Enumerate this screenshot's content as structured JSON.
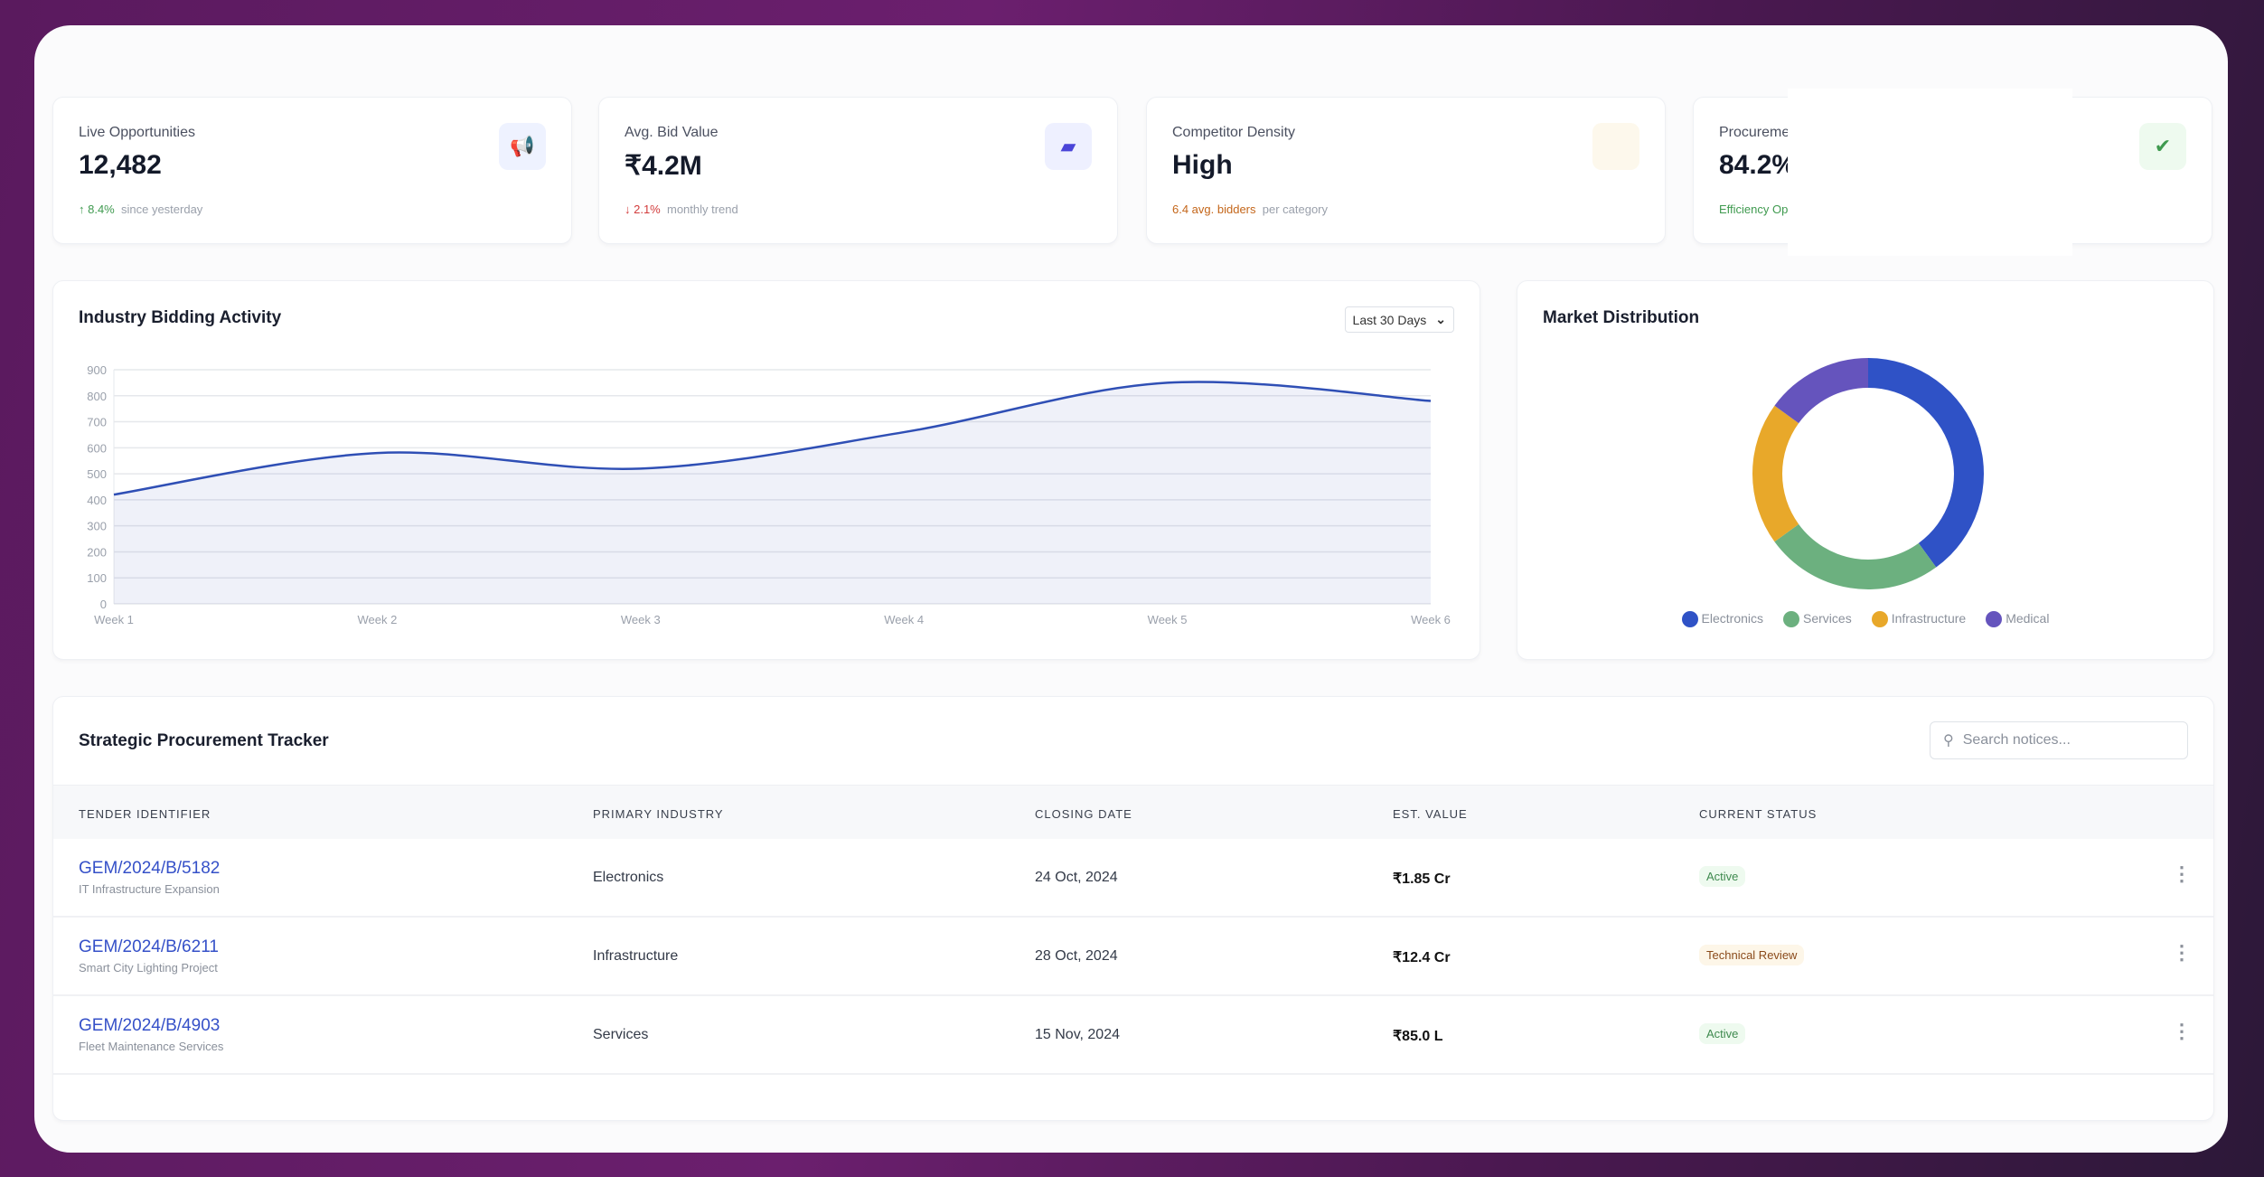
{
  "stats": [
    {
      "label": "Live Opportunities",
      "value": "12,482",
      "delta": "↑ 8.4%",
      "note": "since yesterday",
      "icon": "megaphone-icon",
      "delta_color": "#3f9a4f",
      "icon_bg": "#eef2ff",
      "icon_color": "#3550c8",
      "icon_glyph": "📢"
    },
    {
      "label": "Avg. Bid Value",
      "value": "₹4.2M",
      "delta": "↓ 2.1%",
      "note": "monthly trend",
      "icon": "wallet-icon",
      "delta_color": "#d23b3b",
      "icon_bg": "#eef0ff",
      "icon_color": "#4a45d8",
      "icon_glyph": "▰"
    },
    {
      "label": "Competitor Density",
      "value": "High",
      "delta": "6.4 avg. bidders",
      "note": "per category",
      "icon": "blank-icon",
      "delta_color": "#c4661a",
      "icon_bg": "#fdf8ec",
      "icon_color": "#c4661a",
      "icon_glyph": ""
    },
    {
      "label": "Procurement Efficiency",
      "value": "84.2%",
      "delta": "Efficiency Optimized",
      "note": "",
      "icon": "double-check-icon",
      "delta_color": "#3f9a4f",
      "icon_bg": "#eefaef",
      "icon_color": "#3f9a4f",
      "icon_glyph": "✔"
    }
  ],
  "activity": {
    "title": "Industry Bidding Activity",
    "range": "Last 30 Days"
  },
  "distribution": {
    "title": "Market Distribution"
  },
  "tracker": {
    "title": "Strategic Procurement Tracker",
    "search_placeholder": "Search notices...",
    "columns": [
      "TENDER IDENTIFIER",
      "PRIMARY INDUSTRY",
      "CLOSING DATE",
      "EST. VALUE",
      "CURRENT STATUS"
    ],
    "rows": [
      {
        "id": "GEM/2024/B/5182",
        "desc": "IT Infrastructure Expansion",
        "industry": "Electronics",
        "date": "24 Oct, 2024",
        "value": "₹1.85 Cr",
        "status": "Active"
      },
      {
        "id": "GEM/2024/B/6211",
        "desc": "Smart City Lighting Project",
        "industry": "Infrastructure",
        "date": "28 Oct, 2024",
        "value": "₹12.4 Cr",
        "status": "Technical Review"
      },
      {
        "id": "GEM/2024/B/4903",
        "desc": "Fleet Maintenance Services",
        "industry": "Services",
        "date": "15 Nov, 2024",
        "value": "₹85.0 L",
        "status": "Active"
      }
    ]
  },
  "chart_data": [
    {
      "type": "area",
      "title": "Industry Bidding Activity",
      "categories": [
        "Week 1",
        "Week 2",
        "Week 3",
        "Week 4",
        "Week 5",
        "Week 6"
      ],
      "values": [
        420,
        580,
        520,
        660,
        850,
        780
      ],
      "ylim": [
        0,
        900
      ],
      "yticks": [
        0,
        100,
        200,
        300,
        400,
        500,
        600,
        700,
        800,
        900
      ],
      "grid": true,
      "color": "#2f4fb5"
    },
    {
      "type": "pie",
      "title": "Market Distribution",
      "labels": [
        "Electronics",
        "Services",
        "Infrastructure",
        "Medical"
      ],
      "values": [
        40,
        25,
        20,
        15
      ],
      "colors": [
        "#2f52c6",
        "#6cb07f",
        "#e8a82a",
        "#6554bd"
      ],
      "legend": "bottom"
    }
  ]
}
